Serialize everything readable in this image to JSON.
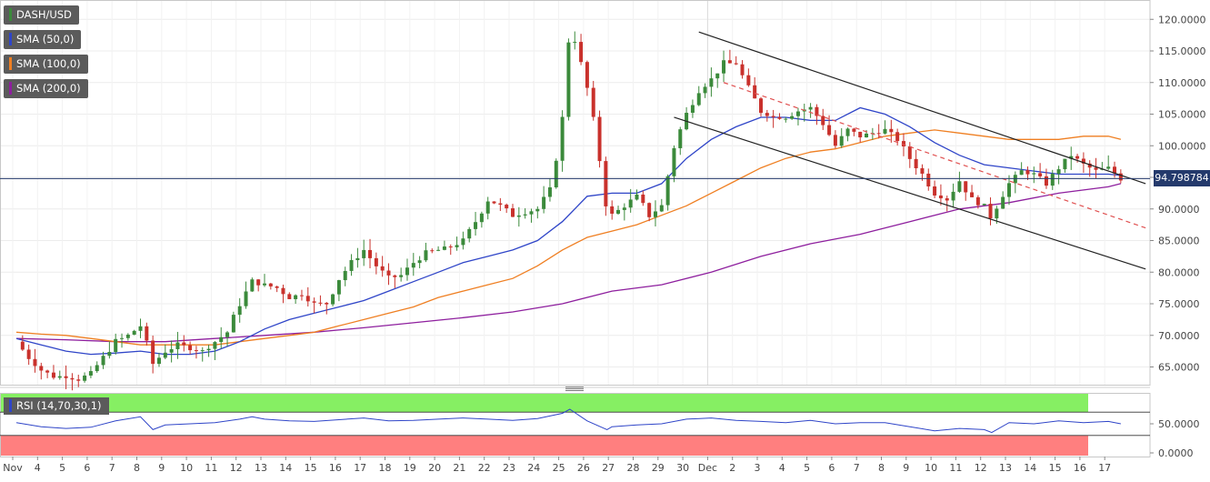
{
  "symbol": "DASH/USD",
  "indicators": [
    {
      "label": "SMA (50,0)",
      "color": "#2f45c8"
    },
    {
      "label": "SMA (100,0)",
      "color": "#ef7f22"
    },
    {
      "label": "SMA (200,0)",
      "color": "#8e1f9e"
    }
  ],
  "rsi": {
    "label": "RSI (14,70,30,1)",
    "color": "#2f45c8",
    "overbought_color": "#86ef63",
    "oversold_color": "#ff7f7f",
    "ticks": [
      "50.0000",
      "0.0000"
    ]
  },
  "current_price": "94.798784",
  "chart_data": {
    "type": "candlestick",
    "y_range": [
      61,
      124
    ],
    "y_ticks": [
      "120.0000",
      "115.0000",
      "110.0000",
      "105.0000",
      "100.0000",
      "95.0000",
      "90.0000",
      "85.0000",
      "80.0000",
      "75.0000",
      "70.0000",
      "65.0000"
    ],
    "x_ticks": [
      "Nov",
      "4",
      "5",
      "6",
      "7",
      "8",
      "9",
      "10",
      "11",
      "12",
      "13",
      "14",
      "15",
      "16",
      "17",
      "18",
      "19",
      "20",
      "21",
      "22",
      "23",
      "24",
      "25",
      "26",
      "27",
      "28",
      "29",
      "30",
      "Dec",
      "2",
      "3",
      "4",
      "5",
      "6",
      "7",
      "8",
      "9",
      "10",
      "11",
      "12",
      "13",
      "14",
      "15",
      "16",
      "17"
    ],
    "last_close": 94.798784,
    "close_series": [
      [
        0,
        69.0
      ],
      [
        0.5,
        66.5
      ],
      [
        1,
        64.5
      ],
      [
        1.5,
        63.5
      ],
      [
        2,
        63.5
      ],
      [
        2.5,
        63.0
      ],
      [
        3,
        64.0
      ],
      [
        3.5,
        66.5
      ],
      [
        4,
        69.0
      ],
      [
        4.5,
        70.0
      ],
      [
        5,
        71.5
      ],
      [
        5.5,
        65.5
      ],
      [
        6,
        67.5
      ],
      [
        6.5,
        68.5
      ],
      [
        7,
        68.0
      ],
      [
        7.5,
        67.5
      ],
      [
        8,
        69.0
      ],
      [
        8.5,
        70.5
      ],
      [
        9,
        75.0
      ],
      [
        9.5,
        78.5
      ],
      [
        10,
        78.0
      ],
      [
        10.5,
        77.5
      ],
      [
        11,
        76.0
      ],
      [
        11.5,
        76.5
      ],
      [
        12,
        75.0
      ],
      [
        12.5,
        75.0
      ],
      [
        13,
        79.0
      ],
      [
        13.5,
        81.5
      ],
      [
        14,
        83.5
      ],
      [
        14.5,
        81.0
      ],
      [
        15,
        79.0
      ],
      [
        15.5,
        79.5
      ],
      [
        16,
        81.5
      ],
      [
        16.5,
        83.0
      ],
      [
        17,
        83.5
      ],
      [
        17.5,
        84.0
      ],
      [
        18,
        85.0
      ],
      [
        18.5,
        88.0
      ],
      [
        19,
        91.5
      ],
      [
        19.5,
        90.5
      ],
      [
        20,
        89.0
      ],
      [
        20.5,
        89.5
      ],
      [
        21,
        90.0
      ],
      [
        21.5,
        93.0
      ],
      [
        22,
        104.0
      ],
      [
        22.3,
        120.0
      ],
      [
        22.6,
        115.0
      ],
      [
        23,
        109.0
      ],
      [
        23.5,
        98.0
      ],
      [
        23.8,
        90.0
      ],
      [
        24,
        89.0
      ],
      [
        24.5,
        90.5
      ],
      [
        25,
        92.0
      ],
      [
        25.5,
        89.0
      ],
      [
        26,
        90.5
      ],
      [
        26.5,
        100.0
      ],
      [
        27,
        105.0
      ],
      [
        27.5,
        109.0
      ],
      [
        28,
        110.5
      ],
      [
        28.5,
        113.0
      ],
      [
        29,
        113.0
      ],
      [
        29.5,
        109.0
      ],
      [
        30,
        105.5
      ],
      [
        30.5,
        104.5
      ],
      [
        31,
        104.5
      ],
      [
        31.5,
        105.5
      ],
      [
        32,
        106.0
      ],
      [
        32.5,
        103.5
      ],
      [
        33,
        100.0
      ],
      [
        33.5,
        102.5
      ],
      [
        34,
        101.5
      ],
      [
        34.5,
        102.0
      ],
      [
        35,
        102.5
      ],
      [
        35.5,
        101.0
      ],
      [
        36,
        98.0
      ],
      [
        36.5,
        95.5
      ],
      [
        37,
        92.5
      ],
      [
        37.5,
        91.5
      ],
      [
        38,
        94.5
      ],
      [
        38.5,
        91.5
      ],
      [
        39,
        90.5
      ],
      [
        39.3,
        88.5
      ],
      [
        39.6,
        91.5
      ],
      [
        40,
        94.0
      ],
      [
        40.5,
        96.0
      ],
      [
        41,
        95.5
      ],
      [
        41.5,
        94.0
      ],
      [
        42,
        96.5
      ],
      [
        42.5,
        98.5
      ],
      [
        43,
        97.0
      ],
      [
        43.5,
        96.0
      ],
      [
        44,
        96.5
      ],
      [
        44.5,
        94.8
      ]
    ],
    "sma_50": [
      [
        0,
        69.5
      ],
      [
        1,
        68.5
      ],
      [
        2,
        67.5
      ],
      [
        3,
        67.0
      ],
      [
        4,
        67.2
      ],
      [
        5,
        67.5
      ],
      [
        6,
        67.0
      ],
      [
        7,
        67.0
      ],
      [
        8,
        67.5
      ],
      [
        9,
        69.0
      ],
      [
        10,
        71.0
      ],
      [
        11,
        72.5
      ],
      [
        12,
        73.5
      ],
      [
        13,
        74.5
      ],
      [
        14,
        75.5
      ],
      [
        15,
        77.0
      ],
      [
        16,
        78.5
      ],
      [
        17,
        80.0
      ],
      [
        18,
        81.5
      ],
      [
        19,
        82.5
      ],
      [
        20,
        83.5
      ],
      [
        21,
        85.0
      ],
      [
        22,
        88.0
      ],
      [
        23,
        92.0
      ],
      [
        24,
        92.5
      ],
      [
        25,
        92.5
      ],
      [
        26,
        94.0
      ],
      [
        27,
        98.0
      ],
      [
        28,
        101.0
      ],
      [
        29,
        103.0
      ],
      [
        30,
        104.5
      ],
      [
        31,
        104.5
      ],
      [
        32,
        104.0
      ],
      [
        33,
        104.0
      ],
      [
        34,
        106.0
      ],
      [
        35,
        105.0
      ],
      [
        36,
        103.0
      ],
      [
        37,
        100.5
      ],
      [
        38,
        98.5
      ],
      [
        39,
        97.0
      ],
      [
        40,
        96.5
      ],
      [
        41,
        96.0
      ],
      [
        42,
        95.5
      ],
      [
        43,
        95.5
      ],
      [
        44,
        95.5
      ],
      [
        44.5,
        95.3
      ]
    ],
    "sma_100": [
      [
        0,
        70.5
      ],
      [
        1,
        70.2
      ],
      [
        2,
        70.0
      ],
      [
        3,
        69.5
      ],
      [
        4,
        69.0
      ],
      [
        5,
        68.5
      ],
      [
        6,
        68.5
      ],
      [
        7,
        68.5
      ],
      [
        8,
        68.5
      ],
      [
        9,
        69.0
      ],
      [
        10,
        69.5
      ],
      [
        11,
        70.0
      ],
      [
        12,
        70.5
      ],
      [
        13,
        71.5
      ],
      [
        14,
        72.5
      ],
      [
        15,
        73.5
      ],
      [
        16,
        74.5
      ],
      [
        17,
        76.0
      ],
      [
        18,
        77.0
      ],
      [
        19,
        78.0
      ],
      [
        20,
        79.0
      ],
      [
        21,
        81.0
      ],
      [
        22,
        83.5
      ],
      [
        23,
        85.5
      ],
      [
        24,
        86.5
      ],
      [
        25,
        87.5
      ],
      [
        26,
        89.0
      ],
      [
        27,
        90.5
      ],
      [
        28,
        92.5
      ],
      [
        29,
        94.5
      ],
      [
        30,
        96.5
      ],
      [
        31,
        98.0
      ],
      [
        32,
        99.0
      ],
      [
        33,
        99.5
      ],
      [
        34,
        100.5
      ],
      [
        35,
        101.5
      ],
      [
        36,
        102.0
      ],
      [
        37,
        102.5
      ],
      [
        38,
        102.0
      ],
      [
        39,
        101.5
      ],
      [
        40,
        101.0
      ],
      [
        41,
        101.0
      ],
      [
        42,
        101.0
      ],
      [
        43,
        101.5
      ],
      [
        44,
        101.5
      ],
      [
        44.5,
        101.0
      ]
    ],
    "sma_200": [
      [
        0,
        69.5
      ],
      [
        2,
        69.3
      ],
      [
        4,
        69.0
      ],
      [
        6,
        69.0
      ],
      [
        8,
        69.5
      ],
      [
        10,
        70.0
      ],
      [
        12,
        70.5
      ],
      [
        14,
        71.2
      ],
      [
        16,
        72.0
      ],
      [
        18,
        72.8
      ],
      [
        20,
        73.7
      ],
      [
        22,
        75.0
      ],
      [
        24,
        77.0
      ],
      [
        26,
        78.0
      ],
      [
        28,
        80.0
      ],
      [
        30,
        82.5
      ],
      [
        32,
        84.5
      ],
      [
        34,
        86.0
      ],
      [
        36,
        88.0
      ],
      [
        38,
        90.0
      ],
      [
        40,
        91.0
      ],
      [
        42,
        92.5
      ],
      [
        44,
        93.5
      ],
      [
        44.5,
        94.0
      ]
    ],
    "rsi_series": [
      [
        0,
        52
      ],
      [
        1,
        45
      ],
      [
        2,
        42
      ],
      [
        3,
        44
      ],
      [
        4,
        55
      ],
      [
        5,
        62
      ],
      [
        5.5,
        40
      ],
      [
        6,
        48
      ],
      [
        7,
        50
      ],
      [
        8,
        52
      ],
      [
        9,
        58
      ],
      [
        9.5,
        62
      ],
      [
        10,
        58
      ],
      [
        11,
        55
      ],
      [
        12,
        54
      ],
      [
        13,
        57
      ],
      [
        14,
        60
      ],
      [
        15,
        55
      ],
      [
        16,
        56
      ],
      [
        17,
        58
      ],
      [
        18,
        60
      ],
      [
        19,
        58
      ],
      [
        20,
        56
      ],
      [
        21,
        59
      ],
      [
        22,
        68
      ],
      [
        22.3,
        75
      ],
      [
        23,
        55
      ],
      [
        23.8,
        40
      ],
      [
        24,
        45
      ],
      [
        25,
        48
      ],
      [
        26,
        50
      ],
      [
        27,
        58
      ],
      [
        28,
        60
      ],
      [
        29,
        56
      ],
      [
        30,
        54
      ],
      [
        31,
        52
      ],
      [
        32,
        56
      ],
      [
        33,
        50
      ],
      [
        34,
        52
      ],
      [
        35,
        52
      ],
      [
        36,
        45
      ],
      [
        37,
        38
      ],
      [
        38,
        42
      ],
      [
        39,
        40
      ],
      [
        39.3,
        35
      ],
      [
        40,
        52
      ],
      [
        41,
        50
      ],
      [
        42,
        55
      ],
      [
        43,
        52
      ],
      [
        44,
        54
      ],
      [
        44.5,
        50
      ]
    ],
    "channel_upper": [
      [
        27.5,
        118.0
      ],
      [
        45.5,
        94.0
      ]
    ],
    "channel_lower": [
      [
        26.5,
        104.5
      ],
      [
        45.5,
        80.5
      ]
    ],
    "channel_mid": [
      [
        28.5,
        110.0
      ],
      [
        45.5,
        87.0
      ]
    ]
  }
}
